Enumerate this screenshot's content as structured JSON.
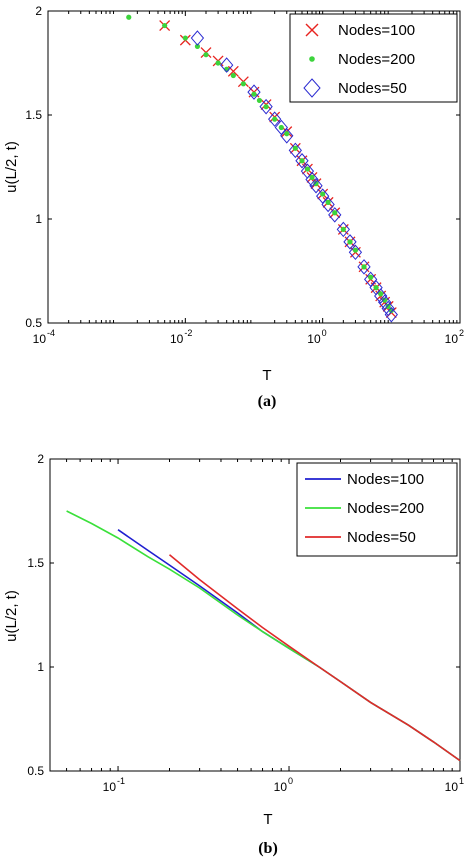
{
  "chart_data": [
    {
      "type": "scatter",
      "panel_label": "(a)",
      "xlabel": "T",
      "ylabel": "u(L/2, t)",
      "xscale": "log",
      "xlim": [
        0.0001,
        100
      ],
      "ylim": [
        0.5,
        2
      ],
      "xticks": [
        {
          "base": "10",
          "exp": "-4",
          "value": 0.0001
        },
        {
          "base": "10",
          "exp": "-2",
          "value": 0.01
        },
        {
          "base": "10",
          "exp": "0",
          "value": 1
        },
        {
          "base": "10",
          "exp": "2",
          "value": 100
        }
      ],
      "yticks": [
        "0.5",
        "1",
        "1.5",
        "2"
      ],
      "ytick_values": [
        0.5,
        1,
        1.5,
        2
      ],
      "legend_position": "top-right",
      "series": [
        {
          "name": "Nodes=100",
          "marker": "x",
          "color": "#e8231f",
          "x": [
            0.005,
            0.01,
            0.02,
            0.03,
            0.05,
            0.07,
            0.1,
            0.15,
            0.2,
            0.3,
            0.4,
            0.5,
            0.6,
            0.7,
            0.8,
            1.0,
            1.2,
            1.5,
            2,
            2.5,
            3,
            4,
            5,
            6,
            7,
            8,
            9,
            10
          ],
          "y": [
            1.93,
            1.86,
            1.8,
            1.76,
            1.71,
            1.66,
            1.61,
            1.55,
            1.49,
            1.42,
            1.34,
            1.28,
            1.24,
            1.2,
            1.17,
            1.12,
            1.08,
            1.03,
            0.95,
            0.89,
            0.84,
            0.77,
            0.71,
            0.67,
            0.63,
            0.6,
            0.58,
            0.55
          ]
        },
        {
          "name": "Nodes=200",
          "marker": "dot",
          "color": "#3cd43c",
          "x": [
            0.0015,
            0.005,
            0.01,
            0.015,
            0.02,
            0.03,
            0.04,
            0.05,
            0.07,
            0.1,
            0.12,
            0.15,
            0.2,
            0.25,
            0.3,
            0.4,
            0.5,
            0.6,
            0.7,
            0.8,
            1.0,
            1.2,
            1.5,
            2,
            2.5,
            3,
            4,
            5,
            6,
            7,
            8,
            9,
            10
          ],
          "y": [
            1.97,
            1.93,
            1.87,
            1.83,
            1.79,
            1.75,
            1.72,
            1.69,
            1.65,
            1.6,
            1.57,
            1.54,
            1.48,
            1.44,
            1.41,
            1.34,
            1.28,
            1.24,
            1.2,
            1.17,
            1.12,
            1.08,
            1.03,
            0.95,
            0.89,
            0.85,
            0.77,
            0.72,
            0.67,
            0.64,
            0.61,
            0.58,
            0.56
          ]
        },
        {
          "name": "Nodes=50",
          "marker": "diamond",
          "color": "#2b2bd1",
          "x": [
            0.015,
            0.04,
            0.1,
            0.15,
            0.2,
            0.25,
            0.3,
            0.4,
            0.5,
            0.6,
            0.7,
            0.8,
            1.0,
            1.2,
            1.5,
            2,
            2.5,
            3,
            4,
            5,
            6,
            7,
            8,
            9,
            10
          ],
          "y": [
            1.87,
            1.74,
            1.61,
            1.54,
            1.48,
            1.44,
            1.4,
            1.33,
            1.28,
            1.23,
            1.19,
            1.16,
            1.11,
            1.07,
            1.02,
            0.95,
            0.89,
            0.84,
            0.77,
            0.71,
            0.67,
            0.63,
            0.6,
            0.57,
            0.54
          ]
        }
      ]
    },
    {
      "type": "line",
      "panel_label": "(b)",
      "xlabel": "T",
      "ylabel": "u(L/2, t)",
      "xscale": "log",
      "xlim": [
        0.04,
        10
      ],
      "ylim": [
        0.5,
        2
      ],
      "xticks": [
        {
          "base": "10",
          "exp": "-1",
          "value": 0.1
        },
        {
          "base": "10",
          "exp": "0",
          "value": 1
        },
        {
          "base": "10",
          "exp": "1",
          "value": 10
        }
      ],
      "yticks": [
        "0.5",
        "1",
        "1.5",
        "2"
      ],
      "ytick_values": [
        0.5,
        1,
        1.5,
        2
      ],
      "legend_position": "top-right",
      "series": [
        {
          "name": "Nodes=100",
          "color": "#1f1fd0",
          "x": [
            0.1,
            0.15,
            0.2,
            0.3,
            0.5,
            0.7,
            1.0,
            1.5,
            2,
            3,
            5,
            7,
            10
          ],
          "y": [
            1.66,
            1.56,
            1.49,
            1.39,
            1.26,
            1.17,
            1.09,
            1.0,
            0.93,
            0.83,
            0.72,
            0.64,
            0.55
          ]
        },
        {
          "name": "Nodes=200",
          "color": "#3ae03a",
          "x": [
            0.05,
            0.07,
            0.1,
            0.15,
            0.2,
            0.3,
            0.5,
            0.7,
            1.0,
            1.5,
            2,
            3,
            5,
            7,
            10
          ],
          "y": [
            1.75,
            1.69,
            1.62,
            1.53,
            1.47,
            1.38,
            1.25,
            1.17,
            1.09,
            1.0,
            0.93,
            0.83,
            0.72,
            0.64,
            0.55
          ]
        },
        {
          "name": "Nodes=50",
          "color": "#e02a2a",
          "x": [
            0.2,
            0.3,
            0.5,
            0.7,
            1.0,
            1.5,
            2,
            3,
            5,
            7,
            10
          ],
          "y": [
            1.54,
            1.42,
            1.28,
            1.19,
            1.1,
            1.0,
            0.93,
            0.83,
            0.72,
            0.64,
            0.55
          ]
        }
      ]
    }
  ]
}
